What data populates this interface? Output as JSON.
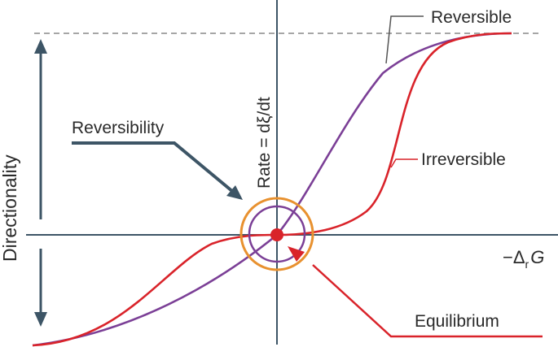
{
  "labels": {
    "reversible": "Reversible",
    "irreversible": "Irreversible",
    "reversibility": "Reversibility",
    "equilibrium": "Equilibrium",
    "directionality": "Directionality",
    "y_axis": "Rate = dξ/dt",
    "x_axis_prefix": "−Δ",
    "x_axis_sub": "r",
    "x_axis_var": "G"
  },
  "colors": {
    "axis": "#3d5566",
    "reversible_curve": "#7b3f96",
    "irreversible_curve": "#d9232a",
    "circle_outer": "#e8912f",
    "equilibrium_dot": "#d9232a",
    "dashed": "#888888"
  }
}
